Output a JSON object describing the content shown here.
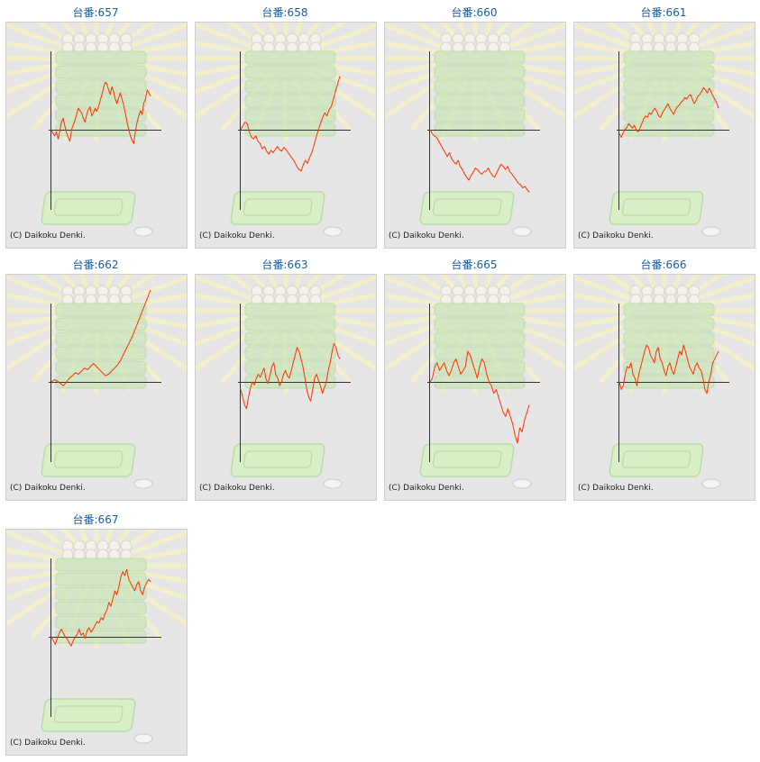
{
  "copyright": "(C) Daikoku Denki.",
  "colors": {
    "line": "#ff3300",
    "axis": "#333333",
    "title": "#1a5fa0",
    "panel": "#e6e6e6"
  },
  "chart_data": [
    {
      "type": "line",
      "title": "台番:657",
      "values": [
        0,
        -5,
        -8,
        -3,
        -12,
        -2,
        10,
        15,
        5,
        -4,
        -10,
        -15,
        0,
        6,
        12,
        20,
        28,
        25,
        22,
        15,
        10,
        20,
        26,
        30,
        18,
        22,
        28,
        24,
        30,
        38,
        45,
        55,
        62,
        60,
        52,
        46,
        56,
        50,
        40,
        34,
        42,
        48,
        40,
        32,
        22,
        10,
        0,
        -8,
        -14,
        -18,
        -2,
        10,
        18,
        25,
        20,
        35,
        40,
        52,
        48,
        44
      ]
    },
    {
      "type": "line",
      "title": "台番:658",
      "values": [
        0,
        5,
        10,
        8,
        -3,
        -10,
        -12,
        -8,
        -15,
        -18,
        -25,
        -22,
        -28,
        -32,
        -27,
        -30,
        -26,
        -22,
        -26,
        -28,
        -23,
        -26,
        -30,
        -34,
        -38,
        -42,
        -48,
        -52,
        -54,
        -46,
        -40,
        -44,
        -36,
        -30,
        -20,
        -10,
        0,
        8,
        16,
        22,
        18,
        26,
        30,
        40,
        50,
        60,
        70
      ]
    },
    {
      "type": "line",
      "title": "台番:660",
      "values": [
        0,
        -5,
        -8,
        -10,
        -15,
        -20,
        -25,
        -30,
        -35,
        -30,
        -38,
        -42,
        -45,
        -40,
        -48,
        -52,
        -58,
        -62,
        -66,
        -60,
        -56,
        -50,
        -52,
        -56,
        -58,
        -55,
        -54,
        -50,
        -56,
        -60,
        -62,
        -56,
        -50,
        -45,
        -48,
        -52,
        -48,
        -55,
        -58,
        -62,
        -66,
        -70,
        -72,
        -76,
        -74,
        -78,
        -82
      ]
    },
    {
      "type": "line",
      "title": "台番:661",
      "values": [
        -5,
        -10,
        -4,
        0,
        3,
        8,
        5,
        2,
        6,
        0,
        -3,
        2,
        8,
        14,
        18,
        16,
        22,
        20,
        25,
        28,
        24,
        18,
        16,
        22,
        26,
        30,
        34,
        28,
        24,
        20,
        26,
        30,
        32,
        36,
        38,
        42,
        40,
        44,
        46,
        40,
        34,
        38,
        44,
        46,
        50,
        55,
        52,
        48,
        54,
        50,
        44,
        40,
        35,
        28
      ]
    },
    {
      "type": "line",
      "title": "台番:662",
      "values": [
        0,
        3,
        1,
        -2,
        -5,
        0,
        5,
        8,
        12,
        10,
        14,
        18,
        16,
        20,
        24,
        20,
        16,
        12,
        8,
        10,
        14,
        18,
        22,
        28,
        36,
        44,
        52,
        60,
        70,
        80,
        90,
        100,
        110,
        120
      ]
    },
    {
      "type": "line",
      "title": "台番:663",
      "values": [
        -10,
        -20,
        -30,
        -35,
        -20,
        -8,
        0,
        -4,
        5,
        10,
        6,
        12,
        18,
        4,
        -2,
        8,
        20,
        25,
        10,
        5,
        -5,
        0,
        10,
        15,
        8,
        5,
        15,
        25,
        35,
        45,
        40,
        30,
        20,
        5,
        -10,
        -20,
        -25,
        -10,
        5,
        10,
        2,
        -5,
        -15,
        -8,
        0,
        15,
        25,
        40,
        50,
        45,
        35,
        30
      ]
    },
    {
      "type": "line",
      "title": "台番:665",
      "values": [
        0,
        5,
        20,
        25,
        15,
        20,
        25,
        15,
        8,
        15,
        25,
        30,
        20,
        10,
        15,
        20,
        40,
        35,
        25,
        15,
        5,
        20,
        30,
        25,
        10,
        0,
        -5,
        -15,
        -10,
        -20,
        -30,
        -40,
        -45,
        -35,
        -45,
        -55,
        -70,
        -80,
        -60,
        -65,
        -50,
        -40,
        -30
      ]
    },
    {
      "type": "line",
      "title": "台番:666",
      "values": [
        0,
        -10,
        -5,
        10,
        20,
        18,
        25,
        10,
        5,
        -5,
        10,
        20,
        30,
        40,
        48,
        45,
        35,
        30,
        25,
        40,
        45,
        30,
        25,
        15,
        8,
        20,
        25,
        15,
        10,
        20,
        30,
        40,
        35,
        48,
        40,
        30,
        20,
        15,
        10,
        20,
        25,
        18,
        15,
        5,
        -10,
        -15,
        0,
        10,
        25,
        30,
        35,
        40
      ]
    },
    {
      "type": "line",
      "title": "台番:667",
      "values": [
        0,
        -5,
        -10,
        -2,
        5,
        10,
        5,
        0,
        -3,
        -8,
        -12,
        -5,
        0,
        3,
        10,
        2,
        5,
        -2,
        8,
        12,
        6,
        10,
        15,
        20,
        18,
        25,
        22,
        30,
        35,
        45,
        40,
        50,
        60,
        55,
        65,
        78,
        85,
        80,
        88,
        75,
        70,
        65,
        60,
        68,
        72,
        60,
        55,
        65,
        70,
        75,
        72
      ]
    }
  ]
}
